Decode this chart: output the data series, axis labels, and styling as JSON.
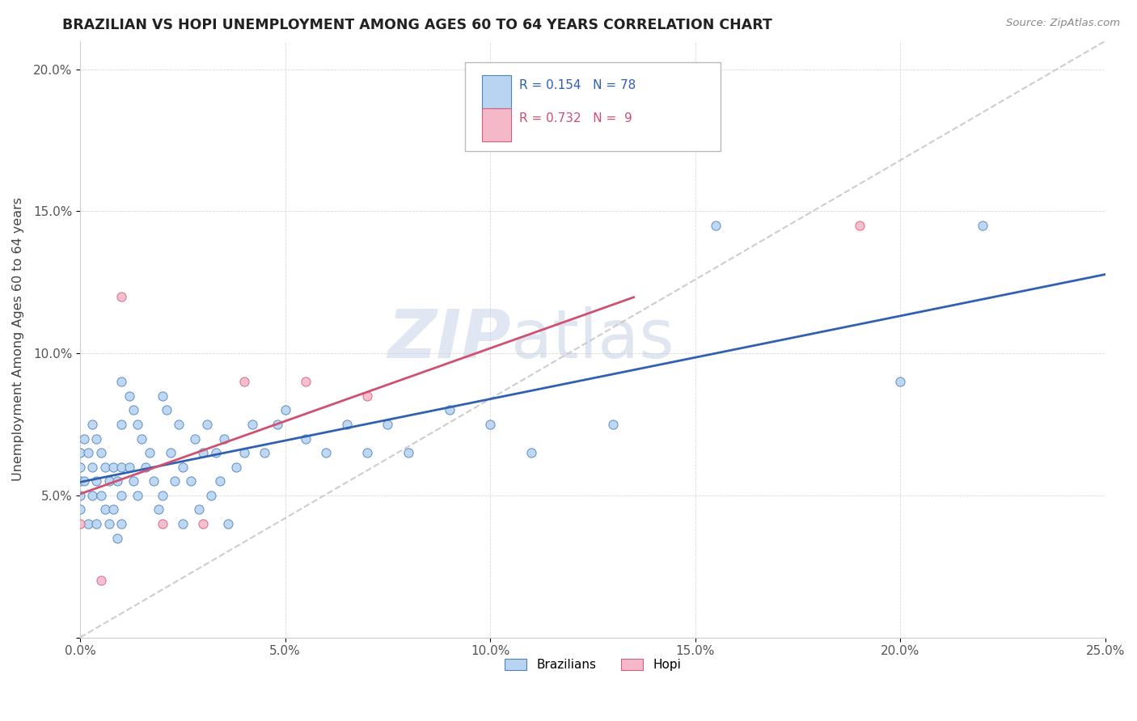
{
  "title": "BRAZILIAN VS HOPI UNEMPLOYMENT AMONG AGES 60 TO 64 YEARS CORRELATION CHART",
  "source": "Source: ZipAtlas.com",
  "ylabel": "Unemployment Among Ages 60 to 64 years",
  "xlim": [
    0.0,
    0.25
  ],
  "ylim": [
    0.0,
    0.21
  ],
  "xticks": [
    0.0,
    0.05,
    0.1,
    0.15,
    0.2,
    0.25
  ],
  "yticks": [
    0.0,
    0.05,
    0.1,
    0.15,
    0.2
  ],
  "xticklabels": [
    "0.0%",
    "5.0%",
    "10.0%",
    "15.0%",
    "20.0%",
    "25.0%"
  ],
  "yticklabels": [
    "",
    "5.0%",
    "10.0%",
    "15.0%",
    "20.0%"
  ],
  "legend_labels": [
    "Brazilians",
    "Hopi"
  ],
  "r_braz": "0.154",
  "n_braz": "78",
  "r_hopi": "0.732",
  "n_hopi": "9",
  "brazilian_fill": "#b8d4f0",
  "hopi_fill": "#f5b8c8",
  "brazilian_edge": "#5080c0",
  "hopi_edge": "#d06080",
  "brazilian_line": "#3060b0",
  "hopi_line": "#d05070",
  "diag_color": "#c8c8c8",
  "watermark": "ZIPatlas",
  "watermark_color": "#cdd8e8",
  "braz_x": [
    0.0,
    0.0,
    0.0,
    0.0,
    0.0,
    0.001,
    0.001,
    0.002,
    0.002,
    0.003,
    0.003,
    0.003,
    0.004,
    0.004,
    0.004,
    0.005,
    0.005,
    0.006,
    0.006,
    0.007,
    0.007,
    0.008,
    0.008,
    0.009,
    0.009,
    0.01,
    0.01,
    0.01,
    0.01,
    0.01,
    0.012,
    0.012,
    0.013,
    0.013,
    0.014,
    0.014,
    0.015,
    0.016,
    0.017,
    0.018,
    0.019,
    0.02,
    0.02,
    0.021,
    0.022,
    0.023,
    0.024,
    0.025,
    0.025,
    0.027,
    0.028,
    0.029,
    0.03,
    0.031,
    0.032,
    0.033,
    0.034,
    0.035,
    0.036,
    0.038,
    0.04,
    0.042,
    0.045,
    0.048,
    0.05,
    0.055,
    0.06,
    0.065,
    0.07,
    0.075,
    0.08,
    0.09,
    0.1,
    0.11,
    0.13,
    0.155,
    0.2,
    0.22
  ],
  "braz_y": [
    0.06,
    0.065,
    0.055,
    0.05,
    0.045,
    0.07,
    0.055,
    0.065,
    0.04,
    0.075,
    0.06,
    0.05,
    0.07,
    0.055,
    0.04,
    0.065,
    0.05,
    0.06,
    0.045,
    0.055,
    0.04,
    0.06,
    0.045,
    0.055,
    0.035,
    0.09,
    0.075,
    0.06,
    0.05,
    0.04,
    0.085,
    0.06,
    0.08,
    0.055,
    0.075,
    0.05,
    0.07,
    0.06,
    0.065,
    0.055,
    0.045,
    0.085,
    0.05,
    0.08,
    0.065,
    0.055,
    0.075,
    0.06,
    0.04,
    0.055,
    0.07,
    0.045,
    0.065,
    0.075,
    0.05,
    0.065,
    0.055,
    0.07,
    0.04,
    0.06,
    0.065,
    0.075,
    0.065,
    0.075,
    0.08,
    0.07,
    0.065,
    0.075,
    0.065,
    0.075,
    0.065,
    0.08,
    0.075,
    0.065,
    0.075,
    0.145,
    0.09,
    0.145
  ],
  "hopi_x": [
    0.0,
    0.005,
    0.01,
    0.02,
    0.03,
    0.04,
    0.055,
    0.07,
    0.19
  ],
  "hopi_y": [
    0.04,
    0.02,
    0.12,
    0.04,
    0.04,
    0.09,
    0.09,
    0.085,
    0.145
  ]
}
